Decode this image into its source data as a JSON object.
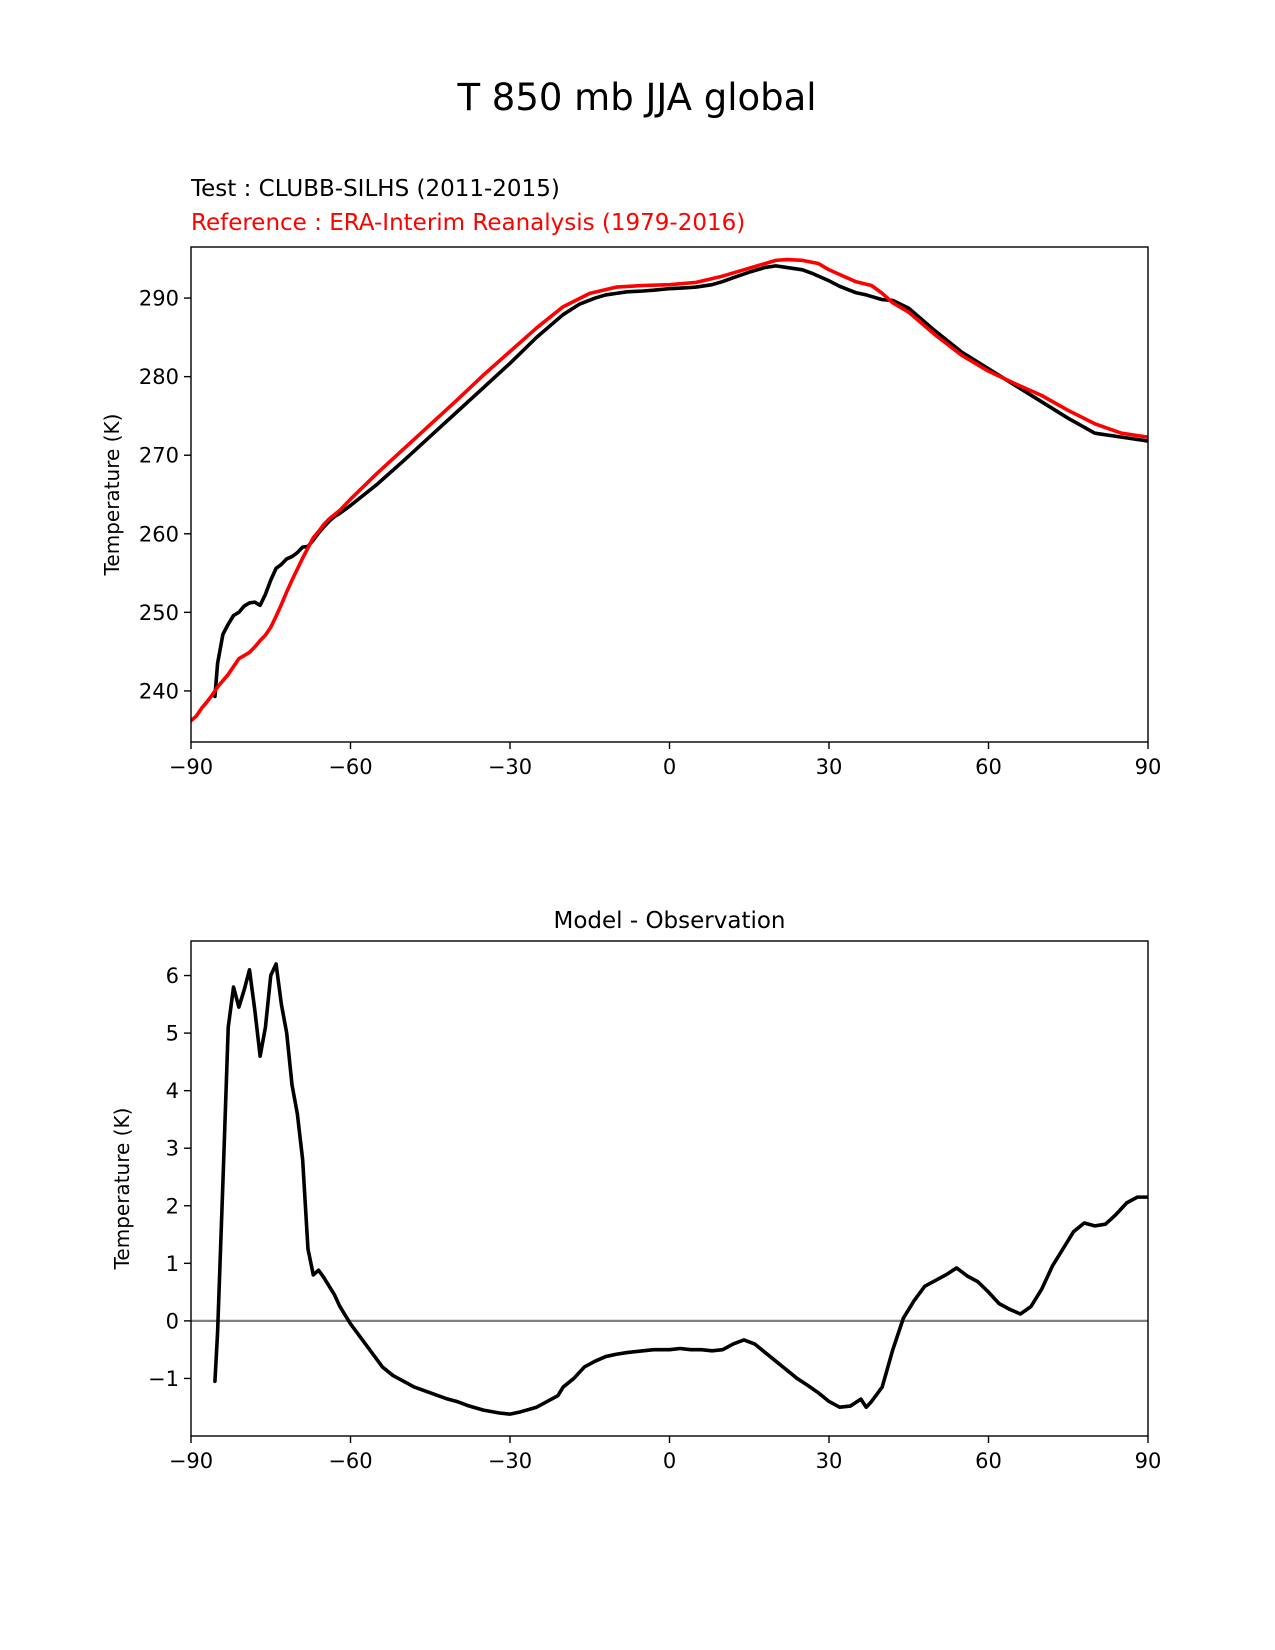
{
  "chart_data": [
    {
      "type": "line",
      "suptitle": "T 850 mb JJA global",
      "test_label": "Test : CLUBB-SILHS (2011-2015)",
      "reference_label": "Reference : ERA-Interim Reanalysis (1979-2016)",
      "xlabel": "",
      "ylabel": "Temperature (K)",
      "xlim": [
        -90,
        90
      ],
      "ylim": [
        233.5,
        296.5
      ],
      "xticks": [
        -90,
        -60,
        -30,
        0,
        30,
        60,
        90
      ],
      "xtick_labels": [
        "−90",
        "−60",
        "−30",
        "0",
        "30",
        "60",
        "90"
      ],
      "yticks": [
        240,
        250,
        260,
        270,
        280,
        290
      ],
      "ytick_labels": [
        "240",
        "250",
        "260",
        "270",
        "280",
        "290"
      ],
      "colors": {
        "test": "#000000",
        "reference": "#ff0000"
      },
      "series": [
        {
          "name": "Test : CLUBB-SILHS (2011-2015)",
          "color": "#000000",
          "x": [
            -85.5,
            -85,
            -84,
            -83,
            -82,
            -81,
            -80,
            -79,
            -78,
            -77,
            -76,
            -75,
            -74,
            -73,
            -72,
            -71,
            -70,
            -69,
            -68,
            -67,
            -66,
            -65,
            -64,
            -63,
            -62,
            -60,
            -55,
            -50,
            -45,
            -40,
            -35,
            -30,
            -25,
            -20,
            -17,
            -14,
            -12,
            -10,
            -8,
            -5,
            -3,
            0,
            3,
            5,
            8,
            10,
            12,
            15,
            18,
            20,
            22,
            25,
            27,
            30,
            32,
            35,
            37,
            40,
            42,
            45,
            50,
            55,
            60,
            65,
            70,
            75,
            80,
            85,
            90
          ],
          "y": [
            239.3,
            243.5,
            247.2,
            248.5,
            249.6,
            250.0,
            250.8,
            251.2,
            251.3,
            250.9,
            252.3,
            254.1,
            255.6,
            256.1,
            256.8,
            257.1,
            257.6,
            258.3,
            258.4,
            259.2,
            260.1,
            260.9,
            261.6,
            262.2,
            262.6,
            263.6,
            266.3,
            269.3,
            272.4,
            275.5,
            278.6,
            281.7,
            285.0,
            287.9,
            289.2,
            290.0,
            290.4,
            290.6,
            290.8,
            290.9,
            291.0,
            291.2,
            291.3,
            291.4,
            291.7,
            292.1,
            292.6,
            293.3,
            293.9,
            294.1,
            293.9,
            293.6,
            293.1,
            292.2,
            291.5,
            290.7,
            290.4,
            289.8,
            289.7,
            288.7,
            285.8,
            283.1,
            281.0,
            278.9,
            276.8,
            274.7,
            272.8,
            272.3,
            271.8
          ]
        },
        {
          "name": "Reference : ERA-Interim Reanalysis (1979-2016)",
          "color": "#ff0000",
          "x": [
            -90,
            -89,
            -88,
            -87,
            -86,
            -85,
            -84,
            -83,
            -82,
            -81,
            -80,
            -79,
            -78,
            -77,
            -76,
            -75,
            -74,
            -73,
            -72,
            -71,
            -70,
            -69,
            -68,
            -67,
            -66,
            -65,
            -64,
            -62,
            -60,
            -55,
            -50,
            -45,
            -40,
            -35,
            -30,
            -25,
            -20,
            -15,
            -10,
            -5,
            0,
            5,
            10,
            15,
            20,
            22,
            25,
            28,
            30,
            32,
            35,
            38,
            40,
            42,
            45,
            50,
            55,
            60,
            65,
            70,
            75,
            80,
            85,
            90
          ],
          "y": [
            236.2,
            236.8,
            237.8,
            238.6,
            239.5,
            240.5,
            241.3,
            242.1,
            243.1,
            244.1,
            244.5,
            244.9,
            245.6,
            246.4,
            247.1,
            248.1,
            249.5,
            251.0,
            252.6,
            254.1,
            255.5,
            256.9,
            258.2,
            259.5,
            260.3,
            261.2,
            261.9,
            263.0,
            264.4,
            267.7,
            270.8,
            273.9,
            277.0,
            280.2,
            283.2,
            286.2,
            288.9,
            290.6,
            291.4,
            291.6,
            291.7,
            292.0,
            292.8,
            293.8,
            294.8,
            294.9,
            294.8,
            294.4,
            293.6,
            293.0,
            292.1,
            291.6,
            290.6,
            289.4,
            288.2,
            285.3,
            282.7,
            280.7,
            279.1,
            277.6,
            275.7,
            274.0,
            272.8,
            272.3
          ]
        }
      ]
    },
    {
      "type": "line",
      "title": "Model - Observation",
      "xlabel": "",
      "ylabel": "Temperature (K)",
      "xlim": [
        -90,
        90
      ],
      "ylim": [
        -2.0,
        6.6
      ],
      "xticks": [
        -90,
        -60,
        -30,
        0,
        30,
        60,
        90
      ],
      "xtick_labels": [
        "−90",
        "−60",
        "−30",
        "0",
        "30",
        "60",
        "90"
      ],
      "yticks": [
        -1,
        0,
        1,
        2,
        3,
        4,
        5,
        6
      ],
      "ytick_labels": [
        "−1",
        "0",
        "1",
        "2",
        "3",
        "4",
        "5",
        "6"
      ],
      "zero_line": 0,
      "colors": {
        "difference": "#000000",
        "zero_line": "#808080"
      },
      "series": [
        {
          "name": "Model - Observation",
          "color": "#000000",
          "x": [
            -85.5,
            -85,
            -84,
            -83,
            -82,
            -81,
            -80,
            -79,
            -78,
            -77,
            -76,
            -75,
            -74,
            -73,
            -72,
            -71,
            -70,
            -69,
            -68,
            -67,
            -66,
            -65,
            -64,
            -63,
            -62,
            -61,
            -60,
            -58,
            -56,
            -54,
            -52,
            -50,
            -48,
            -45,
            -42,
            -40,
            -38,
            -35,
            -32,
            -30,
            -28,
            -25,
            -23,
            -21,
            -20,
            -18,
            -16,
            -14,
            -12,
            -10,
            -8,
            -5,
            -3,
            0,
            2,
            4,
            6,
            8,
            10,
            12,
            14,
            16,
            18,
            20,
            22,
            24,
            26,
            28,
            30,
            32,
            34,
            36,
            37,
            38,
            40,
            42,
            44,
            46,
            48,
            50,
            52,
            54,
            56,
            58,
            60,
            62,
            64,
            66,
            68,
            70,
            72,
            74,
            76,
            78,
            80,
            82,
            84,
            86,
            88,
            90
          ],
          "y": [
            -1.05,
            -0.2,
            2.4,
            5.1,
            5.8,
            5.45,
            5.75,
            6.1,
            5.4,
            4.6,
            5.1,
            6.0,
            6.2,
            5.5,
            5.0,
            4.1,
            3.6,
            2.8,
            1.25,
            0.8,
            0.88,
            0.75,
            0.6,
            0.45,
            0.25,
            0.1,
            -0.05,
            -0.3,
            -0.55,
            -0.8,
            -0.95,
            -1.05,
            -1.15,
            -1.25,
            -1.35,
            -1.4,
            -1.47,
            -1.55,
            -1.6,
            -1.62,
            -1.58,
            -1.5,
            -1.4,
            -1.3,
            -1.15,
            -1.0,
            -0.8,
            -0.7,
            -0.62,
            -0.58,
            -0.55,
            -0.52,
            -0.5,
            -0.5,
            -0.48,
            -0.5,
            -0.5,
            -0.52,
            -0.5,
            -0.4,
            -0.33,
            -0.4,
            -0.55,
            -0.7,
            -0.85,
            -1.0,
            -1.12,
            -1.25,
            -1.4,
            -1.5,
            -1.48,
            -1.36,
            -1.5,
            -1.4,
            -1.15,
            -0.5,
            0.05,
            0.35,
            0.6,
            0.7,
            0.8,
            0.92,
            0.78,
            0.68,
            0.5,
            0.3,
            0.2,
            0.12,
            0.25,
            0.55,
            0.95,
            1.25,
            1.55,
            1.7,
            1.65,
            1.68,
            1.85,
            2.05,
            2.15,
            2.15
          ]
        }
      ]
    }
  ]
}
